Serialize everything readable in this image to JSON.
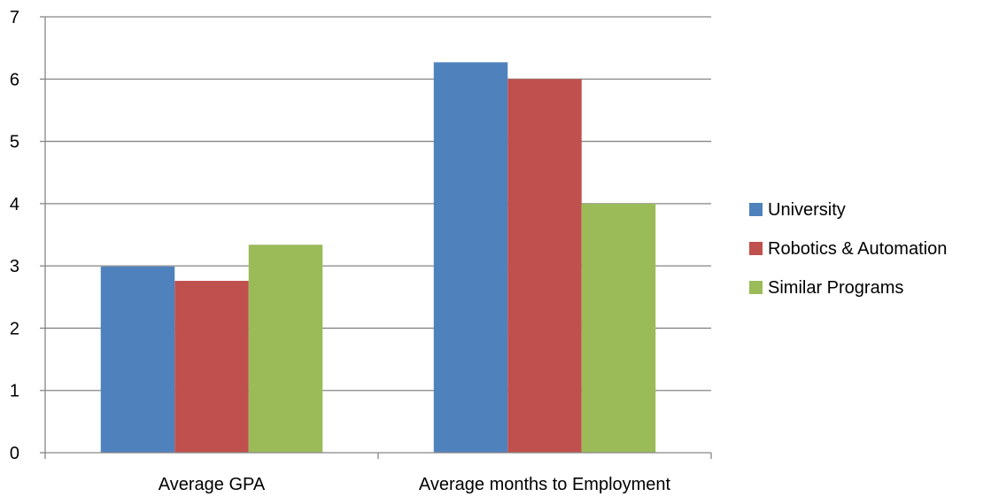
{
  "chart_data": {
    "type": "bar",
    "categories": [
      "Average GPA",
      "Average months to Employment"
    ],
    "series": [
      {
        "name": "University",
        "values": [
          2.99,
          6.27
        ],
        "color": "#4f81bd"
      },
      {
        "name": "Robotics & Automation",
        "values": [
          2.76,
          6.0
        ],
        "color": "#c0504d"
      },
      {
        "name": "Similar Programs",
        "values": [
          3.34,
          4.0
        ],
        "color": "#9bbb59"
      }
    ],
    "ylim": [
      0,
      7
    ],
    "yticks": [
      0,
      1,
      2,
      3,
      4,
      5,
      6,
      7
    ],
    "grid": true,
    "legend_position": "right",
    "gridline_color": "#868686"
  }
}
